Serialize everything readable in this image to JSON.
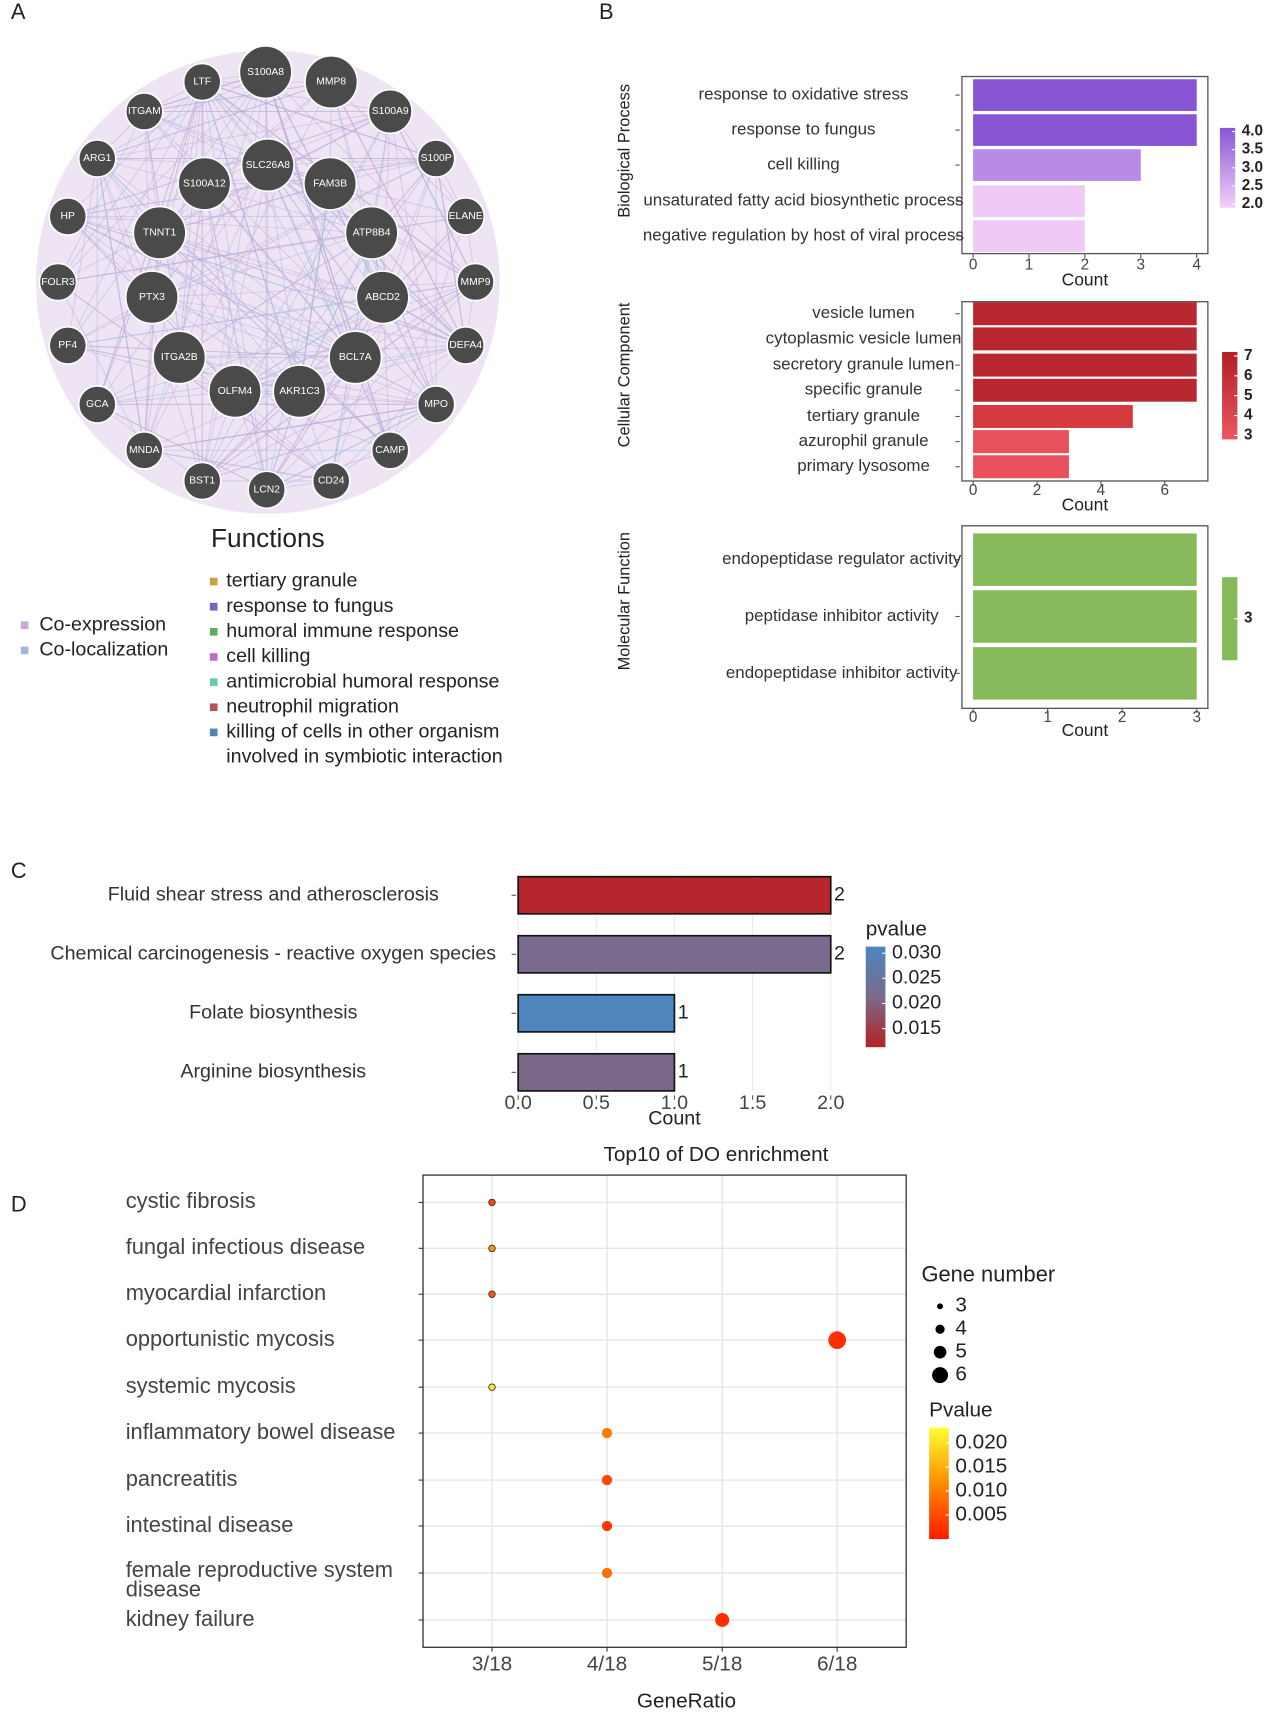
{
  "panel_labels": [
    "A",
    "B",
    "C",
    "D"
  ],
  "network": {
    "nodes": [
      {
        "label": "LTF"
      },
      {
        "label": "S100A8"
      },
      {
        "label": "MMP8"
      },
      {
        "label": "ITGAM"
      },
      {
        "label": "S100A9"
      },
      {
        "label": "ARG1"
      },
      {
        "label": "S100P"
      },
      {
        "label": "SLC26A8"
      },
      {
        "label": "S100A12"
      },
      {
        "label": "FAM3B"
      },
      {
        "label": "HP"
      },
      {
        "label": "ELANE"
      },
      {
        "label": "TNNT1"
      },
      {
        "label": "ATP8B4"
      },
      {
        "label": "FOLR3"
      },
      {
        "label": "MMP9"
      },
      {
        "label": "PTX3"
      },
      {
        "label": "ABCD2"
      },
      {
        "label": "PF4"
      },
      {
        "label": "DEFA4"
      },
      {
        "label": "ITGA2B"
      },
      {
        "label": "BCL7A"
      },
      {
        "label": "OLFM4"
      },
      {
        "label": "AKR1C3"
      },
      {
        "label": "GCA"
      },
      {
        "label": "MPO"
      },
      {
        "label": "MNDA"
      },
      {
        "label": "CAMP"
      },
      {
        "label": "BST1"
      },
      {
        "label": "LCN2"
      },
      {
        "label": "CD24"
      }
    ],
    "legend_title": "Functions",
    "functions": [
      {
        "name": "tertiary granule",
        "color": "#c9a33a"
      },
      {
        "name": "response to fungus",
        "color": "#7a63c7"
      },
      {
        "name": "humoral immune response",
        "color": "#5fae5f"
      },
      {
        "name": "cell killing",
        "color": "#c06cc0"
      },
      {
        "name": "antimicrobial humoral response",
        "color": "#6cc9a5"
      },
      {
        "name": "neutrophil migration",
        "color": "#b45454"
      },
      {
        "name": "killing of cells in other organism involved in symbiotic interaction",
        "color": "#4f86b8"
      }
    ],
    "edge_types": [
      {
        "name": "Co-expression",
        "color": "#c9a8d8"
      },
      {
        "name": "Co-localization",
        "color": "#a3b7e0"
      }
    ]
  },
  "chart_data": [
    {
      "type": "bar",
      "orientation": "horizontal",
      "facet": "Biological Process",
      "categories": [
        "response to oxidative stress",
        "response to fungus",
        "cell killing",
        "unsaturated fatty acid biosynthetic process",
        "negative regulation by host of viral process"
      ],
      "values": [
        4,
        4,
        3,
        2,
        2
      ],
      "colors": [
        "#8856d4",
        "#8856d4",
        "#b98be6",
        "#f0caf7",
        "#f0caf7"
      ],
      "xlim": [
        -0.2,
        4.2
      ],
      "xticks": [
        0,
        1,
        2,
        3,
        4
      ],
      "x_label": "Count",
      "color_scale": {
        "colors": [
          "#f3d0fa",
          "#8856d4"
        ],
        "lim": [
          1.9,
          4.1
        ],
        "ticks": [
          {
            "value": 4,
            "label": "4.0"
          },
          {
            "value": 3.5,
            "label": "3.5"
          },
          {
            "value": 3,
            "label": "3.0"
          },
          {
            "value": 2.5,
            "label": "2.5"
          },
          {
            "value": 2,
            "label": "2.0"
          }
        ]
      }
    },
    {
      "type": "bar",
      "orientation": "horizontal",
      "facet": "Cellular Component",
      "categories": [
        "vesicle lumen",
        "cytoplasmic vesicle lumen",
        "secretory granule lumen",
        "specific granule",
        "tertiary granule",
        "azurophil granule",
        "primary lysosome"
      ],
      "values": [
        7,
        7,
        7,
        7,
        5,
        3,
        3
      ],
      "colors": [
        "#b8262e",
        "#b8262e",
        "#b8262e",
        "#b8262e",
        "#d63a3f",
        "#e8505a",
        "#e8505a"
      ],
      "xlim": [
        -0.35,
        7.35
      ],
      "xticks": [
        0,
        2,
        4,
        6
      ],
      "x_label": "Count",
      "color_scale": {
        "colors": [
          "#ee5560",
          "#b31f27"
        ],
        "lim": [
          2.8,
          7.2
        ],
        "ticks": [
          7,
          6,
          5,
          4,
          3
        ]
      }
    },
    {
      "type": "bar",
      "orientation": "horizontal",
      "facet": "Molecular Function",
      "categories": [
        "endopeptidase regulator activity",
        "peptidase inhibitor activity",
        "endopeptidase inhibitor activity"
      ],
      "values": [
        3,
        3,
        3
      ],
      "colors": [
        "#86b95a",
        "#86b95a",
        "#86b95a"
      ],
      "xlim": [
        -0.15,
        3.15
      ],
      "xticks": [
        0,
        1,
        2,
        3
      ],
      "x_label": "Count",
      "color_scale": {
        "colors": [
          "#86b95a",
          "#86b95a"
        ],
        "lim": [
          2.9,
          3.1
        ],
        "ticks": [
          3
        ]
      }
    },
    {
      "type": "bar",
      "orientation": "horizontal",
      "data_labels": true,
      "categories": [
        "Fluid shear stress and atherosclerosis",
        "Chemical carcinogenesis - reactive oxygen species",
        "Folate biosynthesis",
        "Arginine biosynthesis"
      ],
      "values": [
        2,
        2,
        1,
        1
      ],
      "colors": [
        "#b5262d",
        "#7a6a8e",
        "#4e86bd",
        "#7b6788"
      ],
      "xlim": [
        -0.07,
        2.07
      ],
      "xticks": [
        {
          "value": 0,
          "label": "0.0"
        },
        {
          "value": 0.5,
          "label": "0.5"
        },
        {
          "value": 1,
          "label": "1.0"
        },
        {
          "value": 1.5,
          "label": "1.5"
        },
        {
          "value": 2,
          "label": "2.0"
        }
      ],
      "x_label": "Count",
      "color_scale": {
        "title": "pvalue",
        "colors": [
          "#b22222",
          "#7b6a8c",
          "#4a86c0"
        ],
        "lim": [
          0.0113,
          0.0313
        ],
        "ticks": [
          {
            "value": 0.03,
            "label": "0.030"
          },
          {
            "value": 0.025,
            "label": "0.025"
          },
          {
            "value": 0.02,
            "label": "0.020"
          },
          {
            "value": 0.015,
            "label": "0.015"
          }
        ]
      }
    },
    {
      "type": "dot",
      "title": "Top10 of DO enrichment",
      "categories": [
        "cystic fibrosis",
        "fungal infectious disease",
        "myocardial infarction",
        "opportunistic mycosis",
        "systemic mycosis",
        "inflammatory bowel disease",
        "pancreatitis",
        "intestinal disease",
        "female reproductive system disease",
        "kidney failure"
      ],
      "x": [
        0.1667,
        0.1667,
        0.1667,
        0.3333,
        0.1667,
        0.2222,
        0.2222,
        0.2222,
        0.2222,
        0.2778
      ],
      "sizes": [
        3,
        3,
        3,
        6,
        3,
        4,
        4,
        4,
        4,
        5
      ],
      "pvalues": [
        0.005,
        0.012,
        0.006,
        0.002,
        0.021,
        0.01,
        0.005,
        0.003,
        0.009,
        0.002
      ],
      "xlim": [
        0.1334,
        0.3666
      ],
      "xticks": [
        {
          "value": 0.1667,
          "label": "3/18"
        },
        {
          "value": 0.2222,
          "label": "4/18"
        },
        {
          "value": 0.2778,
          "label": "5/18"
        },
        {
          "value": 0.3333,
          "label": "6/18"
        }
      ],
      "x_label": "GeneRatio",
      "grid": true,
      "size_legend": {
        "title": "Gene number",
        "values": [
          3,
          4,
          5,
          6
        ]
      },
      "color_scale": {
        "title": "Pvalue",
        "colors": [
          "#ff1a00",
          "#ff8c00",
          "#ffff33"
        ],
        "lim": [
          0,
          0.0232
        ],
        "ticks": [
          {
            "value": 0.02,
            "label": "0.020"
          },
          {
            "value": 0.015,
            "label": "0.015"
          },
          {
            "value": 0.01,
            "label": "0.010"
          },
          {
            "value": 0.005,
            "label": "0.005"
          }
        ]
      }
    }
  ]
}
